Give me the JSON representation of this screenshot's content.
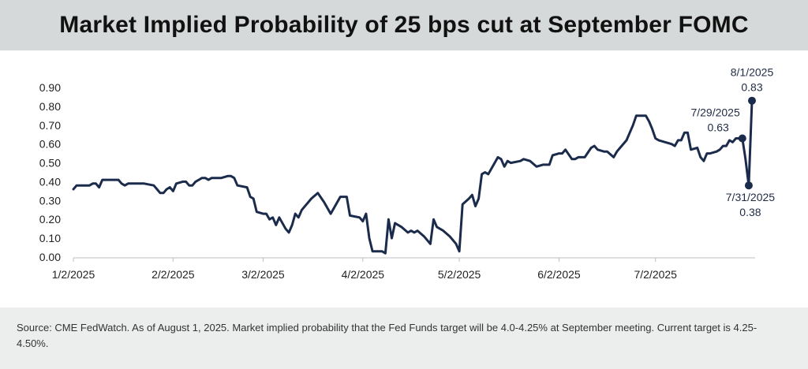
{
  "header": {
    "title": "Market Implied Probability of 25 bps cut at September FOMC"
  },
  "footer": {
    "source": "Source: CME FedWatch. As of August 1, 2025. Market implied probability that the Fed Funds target will be 4.0-4.25% at September meeting. Current target is 4.25-4.50%."
  },
  "colors": {
    "line": "#1b2b4b",
    "header_bg": "#d6d9da",
    "footer_bg": "#eceded"
  },
  "chart_data": {
    "type": "line",
    "title": "Market Implied Probability of 25 bps cut at September FOMC",
    "xlabel": "",
    "ylabel": "",
    "ylim": [
      0,
      0.9
    ],
    "xlim": [
      "2025-01-02",
      "2025-08-01"
    ],
    "grid": false,
    "legend": "none",
    "yticks": [
      "0.00",
      "0.10",
      "0.20",
      "0.30",
      "0.40",
      "0.50",
      "0.60",
      "0.70",
      "0.80",
      "0.90"
    ],
    "xticks": [
      {
        "date": "2025-01-02",
        "label": "1/2/2025"
      },
      {
        "date": "2025-02-02",
        "label": "2/2/2025"
      },
      {
        "date": "2025-03-02",
        "label": "3/2/2025"
      },
      {
        "date": "2025-04-02",
        "label": "4/2/2025"
      },
      {
        "date": "2025-05-02",
        "label": "5/2/2025"
      },
      {
        "date": "2025-06-02",
        "label": "6/2/2025"
      },
      {
        "date": "2025-07-02",
        "label": "7/2/2025"
      }
    ],
    "series": [
      {
        "points": [
          [
            "2025-01-02",
            0.36
          ],
          [
            "2025-01-03",
            0.38
          ],
          [
            "2025-01-06",
            0.38
          ],
          [
            "2025-01-07",
            0.38
          ],
          [
            "2025-01-08",
            0.39
          ],
          [
            "2025-01-09",
            0.39
          ],
          [
            "2025-01-10",
            0.37
          ],
          [
            "2025-01-11",
            0.41
          ],
          [
            "2025-01-15",
            0.41
          ],
          [
            "2025-01-16",
            0.41
          ],
          [
            "2025-01-17",
            0.39
          ],
          [
            "2025-01-18",
            0.38
          ],
          [
            "2025-01-19",
            0.39
          ],
          [
            "2025-01-21",
            0.39
          ],
          [
            "2025-01-24",
            0.39
          ],
          [
            "2025-01-27",
            0.38
          ],
          [
            "2025-01-28",
            0.36
          ],
          [
            "2025-01-29",
            0.34
          ],
          [
            "2025-01-30",
            0.34
          ],
          [
            "2025-01-31",
            0.36
          ],
          [
            "2025-02-01",
            0.37
          ],
          [
            "2025-02-02",
            0.35
          ],
          [
            "2025-02-03",
            0.39
          ],
          [
            "2025-02-05",
            0.4
          ],
          [
            "2025-02-06",
            0.4
          ],
          [
            "2025-02-07",
            0.38
          ],
          [
            "2025-02-08",
            0.38
          ],
          [
            "2025-02-09",
            0.4
          ],
          [
            "2025-02-10",
            0.41
          ],
          [
            "2025-02-11",
            0.42
          ],
          [
            "2025-02-12",
            0.42
          ],
          [
            "2025-02-13",
            0.41
          ],
          [
            "2025-02-14",
            0.42
          ],
          [
            "2025-02-17",
            0.42
          ],
          [
            "2025-02-19",
            0.43
          ],
          [
            "2025-02-20",
            0.43
          ],
          [
            "2025-02-21",
            0.42
          ],
          [
            "2025-02-22",
            0.38
          ],
          [
            "2025-02-25",
            0.37
          ],
          [
            "2025-02-26",
            0.32
          ],
          [
            "2025-02-27",
            0.31
          ],
          [
            "2025-02-28",
            0.24
          ],
          [
            "2025-03-02",
            0.23
          ],
          [
            "2025-03-03",
            0.23
          ],
          [
            "2025-03-04",
            0.2
          ],
          [
            "2025-03-05",
            0.21
          ],
          [
            "2025-03-06",
            0.17
          ],
          [
            "2025-03-07",
            0.21
          ],
          [
            "2025-03-09",
            0.15
          ],
          [
            "2025-03-10",
            0.13
          ],
          [
            "2025-03-11",
            0.17
          ],
          [
            "2025-03-12",
            0.23
          ],
          [
            "2025-03-13",
            0.21
          ],
          [
            "2025-03-14",
            0.25
          ],
          [
            "2025-03-17",
            0.31
          ],
          [
            "2025-03-19",
            0.34
          ],
          [
            "2025-03-21",
            0.29
          ],
          [
            "2025-03-23",
            0.23
          ],
          [
            "2025-03-26",
            0.32
          ],
          [
            "2025-03-27",
            0.32
          ],
          [
            "2025-03-28",
            0.32
          ],
          [
            "2025-03-29",
            0.22
          ],
          [
            "2025-04-01",
            0.21
          ],
          [
            "2025-04-02",
            0.19
          ],
          [
            "2025-04-03",
            0.23
          ],
          [
            "2025-04-04",
            0.1
          ],
          [
            "2025-04-05",
            0.03
          ],
          [
            "2025-04-07",
            0.03
          ],
          [
            "2025-04-08",
            0.03
          ],
          [
            "2025-04-09",
            0.02
          ],
          [
            "2025-04-10",
            0.2
          ],
          [
            "2025-04-11",
            0.1
          ],
          [
            "2025-04-12",
            0.18
          ],
          [
            "2025-04-14",
            0.16
          ],
          [
            "2025-04-16",
            0.13
          ],
          [
            "2025-04-17",
            0.14
          ],
          [
            "2025-04-18",
            0.13
          ],
          [
            "2025-04-19",
            0.14
          ],
          [
            "2025-04-21",
            0.11
          ],
          [
            "2025-04-23",
            0.07
          ],
          [
            "2025-04-24",
            0.2
          ],
          [
            "2025-04-25",
            0.16
          ],
          [
            "2025-04-27",
            0.14
          ],
          [
            "2025-04-29",
            0.11
          ],
          [
            "2025-05-01",
            0.07
          ],
          [
            "2025-05-02",
            0.03
          ],
          [
            "2025-05-03",
            0.28
          ],
          [
            "2025-05-05",
            0.31
          ],
          [
            "2025-05-06",
            0.33
          ],
          [
            "2025-05-07",
            0.27
          ],
          [
            "2025-05-08",
            0.31
          ],
          [
            "2025-05-09",
            0.44
          ],
          [
            "2025-05-10",
            0.45
          ],
          [
            "2025-05-11",
            0.44
          ],
          [
            "2025-05-13",
            0.5
          ],
          [
            "2025-05-14",
            0.53
          ],
          [
            "2025-05-15",
            0.52
          ],
          [
            "2025-05-16",
            0.48
          ],
          [
            "2025-05-17",
            0.51
          ],
          [
            "2025-05-18",
            0.5
          ],
          [
            "2025-05-21",
            0.51
          ],
          [
            "2025-05-22",
            0.52
          ],
          [
            "2025-05-24",
            0.51
          ],
          [
            "2025-05-26",
            0.48
          ],
          [
            "2025-05-28",
            0.49
          ],
          [
            "2025-05-30",
            0.49
          ],
          [
            "2025-05-31",
            0.54
          ],
          [
            "2025-06-02",
            0.55
          ],
          [
            "2025-06-03",
            0.55
          ],
          [
            "2025-06-04",
            0.57
          ],
          [
            "2025-06-06",
            0.52
          ],
          [
            "2025-06-07",
            0.52
          ],
          [
            "2025-06-08",
            0.53
          ],
          [
            "2025-06-10",
            0.53
          ],
          [
            "2025-06-12",
            0.58
          ],
          [
            "2025-06-13",
            0.59
          ],
          [
            "2025-06-14",
            0.57
          ],
          [
            "2025-06-16",
            0.56
          ],
          [
            "2025-06-17",
            0.56
          ],
          [
            "2025-06-19",
            0.53
          ],
          [
            "2025-06-20",
            0.56
          ],
          [
            "2025-06-21",
            0.58
          ],
          [
            "2025-06-23",
            0.62
          ],
          [
            "2025-06-24",
            0.66
          ],
          [
            "2025-06-25",
            0.7
          ],
          [
            "2025-06-26",
            0.75
          ],
          [
            "2025-06-27",
            0.75
          ],
          [
            "2025-06-29",
            0.75
          ],
          [
            "2025-06-30",
            0.72
          ],
          [
            "2025-07-01",
            0.68
          ],
          [
            "2025-07-02",
            0.63
          ],
          [
            "2025-07-03",
            0.62
          ],
          [
            "2025-07-07",
            0.6
          ],
          [
            "2025-07-08",
            0.59
          ],
          [
            "2025-07-09",
            0.62
          ],
          [
            "2025-07-10",
            0.62
          ],
          [
            "2025-07-11",
            0.66
          ],
          [
            "2025-07-12",
            0.66
          ],
          [
            "2025-07-13",
            0.57
          ],
          [
            "2025-07-15",
            0.58
          ],
          [
            "2025-07-16",
            0.53
          ],
          [
            "2025-07-17",
            0.51
          ],
          [
            "2025-07-18",
            0.55
          ],
          [
            "2025-07-19",
            0.55
          ],
          [
            "2025-07-21",
            0.56
          ],
          [
            "2025-07-22",
            0.57
          ],
          [
            "2025-07-23",
            0.59
          ],
          [
            "2025-07-24",
            0.59
          ],
          [
            "2025-07-25",
            0.62
          ],
          [
            "2025-07-26",
            0.61
          ],
          [
            "2025-07-27",
            0.63
          ],
          [
            "2025-07-29",
            0.63
          ],
          [
            "2025-07-30",
            0.52
          ],
          [
            "2025-07-31",
            0.38
          ],
          [
            "2025-08-01",
            0.83
          ]
        ]
      }
    ],
    "annotations": [
      {
        "date": "2025-07-29",
        "value": 0.63,
        "date_label": "7/29/2025",
        "value_label": "0.63",
        "placement": "above-left"
      },
      {
        "date": "2025-07-31",
        "value": 0.38,
        "date_label": "7/31/2025",
        "value_label": "0.38",
        "placement": "below-right"
      },
      {
        "date": "2025-08-01",
        "value": 0.83,
        "date_label": "8/1/2025",
        "value_label": "0.83",
        "placement": "above"
      }
    ]
  }
}
